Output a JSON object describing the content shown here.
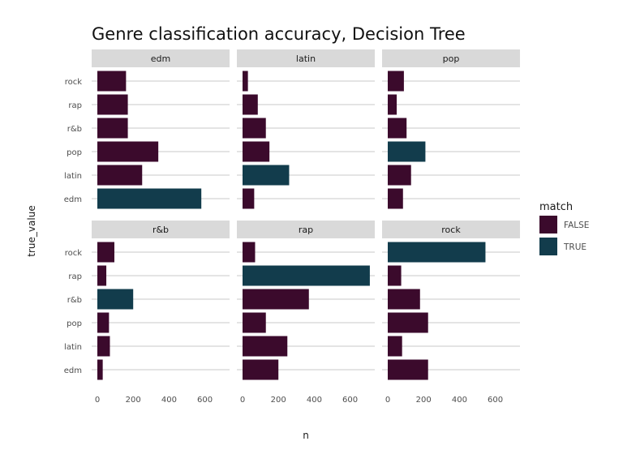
{
  "chart_data": {
    "type": "bar",
    "orientation": "horizontal",
    "title": "Genre classification accuracy, Decision Tree",
    "xlabel": "n",
    "ylabel": "true_value",
    "categories": [
      "rock",
      "rap",
      "r&b",
      "pop",
      "latin",
      "edm"
    ],
    "x_ticks": [
      0,
      200,
      400,
      600
    ],
    "xlim": [
      0,
      720
    ],
    "grid": true,
    "legend": {
      "title": "match",
      "placement": "right",
      "entries": [
        {
          "label": "FALSE",
          "color": "#3b0a2c"
        },
        {
          "label": "TRUE",
          "color": "#123c4c"
        }
      ]
    },
    "panels": [
      {
        "name": "edm",
        "values": {
          "rock": 160,
          "rap": 170,
          "r&b": 170,
          "pop": 340,
          "latin": 250,
          "edm": 580
        },
        "match_category": "edm"
      },
      {
        "name": "latin",
        "values": {
          "rock": 30,
          "rap": 85,
          "r&b": 130,
          "pop": 150,
          "latin": 260,
          "edm": 65
        },
        "match_category": "latin"
      },
      {
        "name": "pop",
        "values": {
          "rock": 90,
          "rap": 50,
          "r&b": 105,
          "pop": 210,
          "latin": 130,
          "edm": 85
        },
        "match_category": "pop"
      },
      {
        "name": "r&b",
        "values": {
          "rock": 95,
          "rap": 50,
          "r&b": 200,
          "pop": 65,
          "latin": 70,
          "edm": 30
        },
        "match_category": "r&b"
      },
      {
        "name": "rap",
        "values": {
          "rock": 70,
          "rap": 710,
          "r&b": 370,
          "pop": 130,
          "latin": 250,
          "edm": 200
        },
        "match_category": "rap"
      },
      {
        "name": "rock",
        "values": {
          "rock": 545,
          "rap": 75,
          "r&b": 180,
          "pop": 225,
          "latin": 80,
          "edm": 225
        },
        "match_category": "rock"
      }
    ]
  }
}
